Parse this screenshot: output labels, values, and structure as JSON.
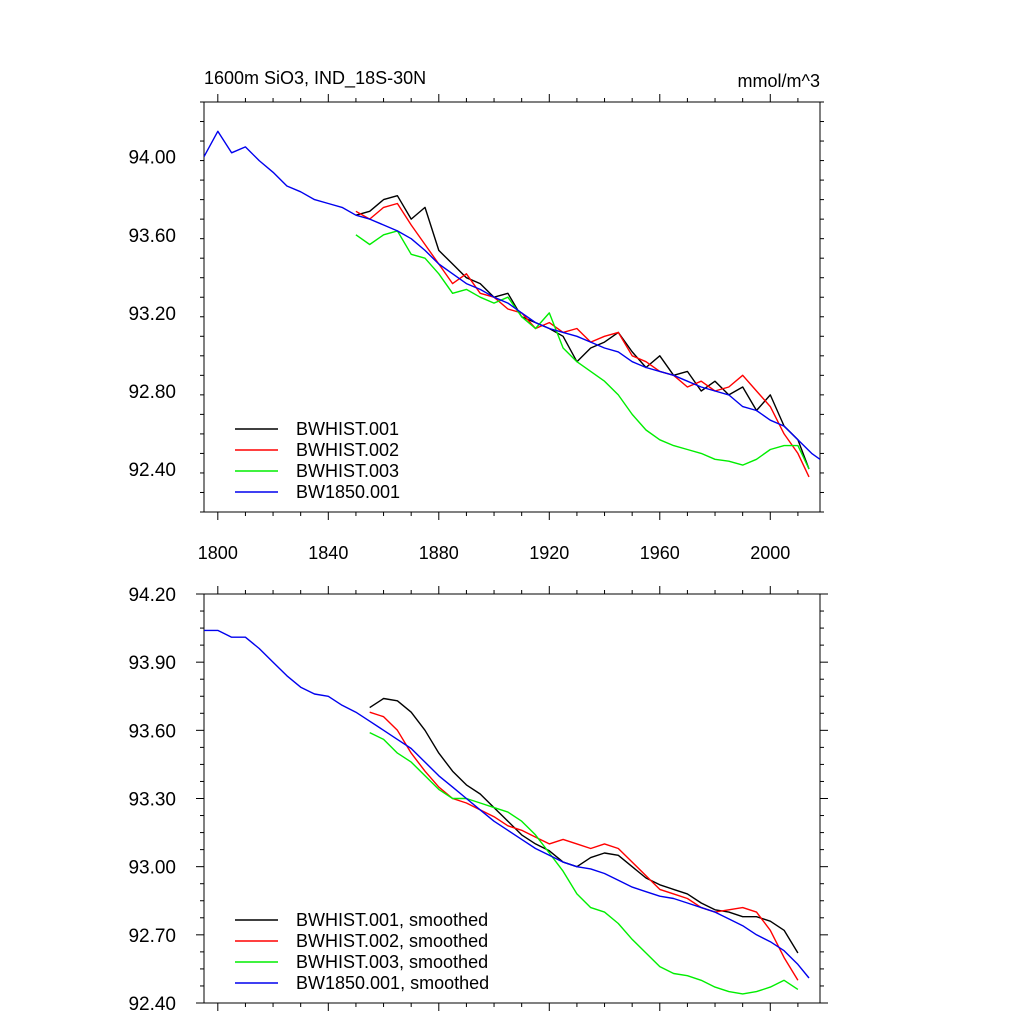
{
  "chart_data": [
    {
      "type": "line",
      "title_left": "1600m SiO3, IND_18S-30N",
      "title_right": "mmol/m^3",
      "xlim": [
        1795,
        2018
      ],
      "ylim": [
        92.18,
        94.28
      ],
      "x_ticks": [
        1800,
        1840,
        1880,
        1920,
        1960,
        2000
      ],
      "y_ticks": [
        92.4,
        92.8,
        93.2,
        93.6,
        94.0
      ],
      "y_tick_labels": [
        "92.40",
        "92.80",
        "93.20",
        "93.60",
        "94.00"
      ],
      "legend_position": "bottom-left",
      "series": [
        {
          "name": "BWHIST.001",
          "color": "#000000",
          "x": [
            1850,
            1855,
            1860,
            1865,
            1870,
            1875,
            1880,
            1885,
            1890,
            1895,
            1900,
            1905,
            1910,
            1915,
            1920,
            1925,
            1930,
            1935,
            1940,
            1945,
            1950,
            1955,
            1960,
            1965,
            1970,
            1975,
            1980,
            1985,
            1990,
            1995,
            2000,
            2005,
            2010,
            2014
          ],
          "y": [
            93.7,
            93.72,
            93.78,
            93.8,
            93.68,
            93.74,
            93.52,
            93.45,
            93.38,
            93.35,
            93.28,
            93.3,
            93.18,
            93.15,
            93.12,
            93.08,
            92.95,
            93.02,
            93.05,
            93.1,
            93.0,
            92.92,
            92.98,
            92.88,
            92.9,
            92.8,
            92.85,
            92.78,
            92.82,
            92.7,
            92.78,
            92.62,
            92.55,
            92.4
          ]
        },
        {
          "name": "BWHIST.002",
          "color": "#ff0000",
          "x": [
            1850,
            1855,
            1860,
            1865,
            1870,
            1875,
            1880,
            1885,
            1890,
            1895,
            1900,
            1905,
            1910,
            1915,
            1920,
            1925,
            1930,
            1935,
            1940,
            1945,
            1950,
            1955,
            1960,
            1965,
            1970,
            1975,
            1980,
            1985,
            1990,
            1995,
            2000,
            2005,
            2010,
            2014
          ],
          "y": [
            93.72,
            93.68,
            93.74,
            93.76,
            93.65,
            93.55,
            93.45,
            93.35,
            93.4,
            93.3,
            93.28,
            93.22,
            93.2,
            93.12,
            93.15,
            93.1,
            93.12,
            93.05,
            93.08,
            93.1,
            92.98,
            92.95,
            92.9,
            92.88,
            92.82,
            92.85,
            92.8,
            92.82,
            92.88,
            92.8,
            92.72,
            92.58,
            92.48,
            92.36
          ]
        },
        {
          "name": "BWHIST.003",
          "color": "#00ee00",
          "x": [
            1850,
            1855,
            1860,
            1865,
            1870,
            1875,
            1880,
            1885,
            1890,
            1895,
            1900,
            1905,
            1910,
            1915,
            1920,
            1925,
            1930,
            1935,
            1940,
            1945,
            1950,
            1955,
            1960,
            1965,
            1970,
            1975,
            1980,
            1985,
            1990,
            1995,
            2000,
            2005,
            2010,
            2014
          ],
          "y": [
            93.6,
            93.55,
            93.6,
            93.62,
            93.5,
            93.48,
            93.4,
            93.3,
            93.32,
            93.28,
            93.25,
            93.28,
            93.18,
            93.12,
            93.2,
            93.02,
            92.95,
            92.9,
            92.85,
            92.78,
            92.68,
            92.6,
            92.55,
            92.52,
            92.5,
            92.48,
            92.45,
            92.44,
            92.42,
            92.45,
            92.5,
            92.52,
            92.52,
            92.4
          ]
        },
        {
          "name": "BW1850.001",
          "color": "#0000ee",
          "x": [
            1795,
            1800,
            1805,
            1810,
            1815,
            1820,
            1825,
            1830,
            1835,
            1840,
            1845,
            1850,
            1855,
            1860,
            1865,
            1870,
            1875,
            1880,
            1885,
            1890,
            1895,
            1900,
            1905,
            1910,
            1915,
            1920,
            1925,
            1930,
            1935,
            1940,
            1945,
            1950,
            1955,
            1960,
            1965,
            1970,
            1975,
            1980,
            1985,
            1990,
            1995,
            2000,
            2005,
            2010,
            2015,
            2018
          ],
          "y": [
            94.0,
            94.13,
            94.02,
            94.05,
            93.98,
            93.92,
            93.85,
            93.82,
            93.78,
            93.76,
            93.74,
            93.7,
            93.68,
            93.65,
            93.62,
            93.58,
            93.52,
            93.45,
            93.4,
            93.35,
            93.32,
            93.28,
            93.25,
            93.2,
            93.15,
            93.12,
            93.1,
            93.08,
            93.05,
            93.02,
            93.0,
            92.95,
            92.92,
            92.9,
            92.88,
            92.85,
            92.82,
            92.8,
            92.78,
            92.72,
            92.7,
            92.65,
            92.62,
            92.55,
            92.48,
            92.45
          ]
        }
      ]
    },
    {
      "type": "line",
      "xlim": [
        1795,
        2018
      ],
      "ylim": [
        92.4,
        94.2
      ],
      "x_ticks": [
        1800,
        1840,
        1880,
        1920,
        1960,
        2000
      ],
      "y_ticks": [
        92.4,
        92.7,
        93.0,
        93.3,
        93.6,
        93.9,
        94.2
      ],
      "y_tick_labels": [
        "92.40",
        "92.70",
        "93.00",
        "93.30",
        "93.60",
        "93.90",
        "94.20"
      ],
      "legend_position": "bottom-left",
      "series": [
        {
          "name": "BWHIST.001, smoothed",
          "color": "#000000",
          "x": [
            1855,
            1860,
            1865,
            1870,
            1875,
            1880,
            1885,
            1890,
            1895,
            1900,
            1905,
            1910,
            1915,
            1920,
            1925,
            1930,
            1935,
            1940,
            1945,
            1950,
            1955,
            1960,
            1965,
            1970,
            1975,
            1980,
            1985,
            1990,
            1995,
            2000,
            2005,
            2010
          ],
          "y": [
            93.7,
            93.74,
            93.73,
            93.68,
            93.6,
            93.5,
            93.42,
            93.36,
            93.32,
            93.26,
            93.2,
            93.14,
            93.1,
            93.07,
            93.02,
            93.0,
            93.04,
            93.06,
            93.05,
            93.0,
            92.95,
            92.92,
            92.9,
            92.88,
            92.84,
            92.81,
            92.8,
            92.78,
            92.78,
            92.76,
            92.72,
            92.62
          ]
        },
        {
          "name": "BWHIST.002, smoothed",
          "color": "#ff0000",
          "x": [
            1855,
            1860,
            1865,
            1870,
            1875,
            1880,
            1885,
            1890,
            1895,
            1900,
            1905,
            1910,
            1915,
            1920,
            1925,
            1930,
            1935,
            1940,
            1945,
            1950,
            1955,
            1960,
            1965,
            1970,
            1975,
            1980,
            1985,
            1990,
            1995,
            2000,
            2005,
            2010
          ],
          "y": [
            93.68,
            93.66,
            93.6,
            93.5,
            93.42,
            93.35,
            93.3,
            93.28,
            93.25,
            93.22,
            93.18,
            93.16,
            93.13,
            93.1,
            93.12,
            93.1,
            93.08,
            93.1,
            93.08,
            93.02,
            92.96,
            92.9,
            92.88,
            92.86,
            92.82,
            92.8,
            92.81,
            92.82,
            92.8,
            92.72,
            92.6,
            92.5
          ]
        },
        {
          "name": "BWHIST.003, smoothed",
          "color": "#00ee00",
          "x": [
            1855,
            1860,
            1865,
            1870,
            1875,
            1880,
            1885,
            1890,
            1895,
            1900,
            1905,
            1910,
            1915,
            1920,
            1925,
            1930,
            1935,
            1940,
            1945,
            1950,
            1955,
            1960,
            1965,
            1970,
            1975,
            1980,
            1985,
            1990,
            1995,
            2000,
            2005,
            2010
          ],
          "y": [
            93.59,
            93.56,
            93.5,
            93.46,
            93.4,
            93.34,
            93.3,
            93.3,
            93.28,
            93.26,
            93.24,
            93.2,
            93.14,
            93.06,
            92.98,
            92.88,
            92.82,
            92.8,
            92.75,
            92.68,
            92.62,
            92.56,
            92.53,
            92.52,
            92.5,
            92.47,
            92.45,
            92.44,
            92.45,
            92.47,
            92.5,
            92.46
          ]
        },
        {
          "name": "BW1850.001, smoothed",
          "color": "#0000ee",
          "x": [
            1795,
            1800,
            1805,
            1810,
            1815,
            1820,
            1825,
            1830,
            1835,
            1840,
            1845,
            1850,
            1855,
            1860,
            1865,
            1870,
            1875,
            1880,
            1885,
            1890,
            1895,
            1900,
            1905,
            1910,
            1915,
            1920,
            1925,
            1930,
            1935,
            1940,
            1945,
            1950,
            1955,
            1960,
            1965,
            1970,
            1975,
            1980,
            1985,
            1990,
            1995,
            2000,
            2005,
            2010,
            2014
          ],
          "y": [
            94.04,
            94.04,
            94.01,
            94.01,
            93.96,
            93.9,
            93.84,
            93.79,
            93.76,
            93.75,
            93.71,
            93.68,
            93.64,
            93.6,
            93.56,
            93.52,
            93.46,
            93.4,
            93.35,
            93.3,
            93.25,
            93.2,
            93.16,
            93.12,
            93.08,
            93.05,
            93.02,
            93.0,
            92.99,
            92.97,
            92.94,
            92.91,
            92.89,
            92.87,
            92.86,
            92.84,
            92.82,
            92.8,
            92.77,
            92.74,
            92.7,
            92.67,
            92.63,
            92.57,
            92.51
          ]
        }
      ]
    }
  ]
}
